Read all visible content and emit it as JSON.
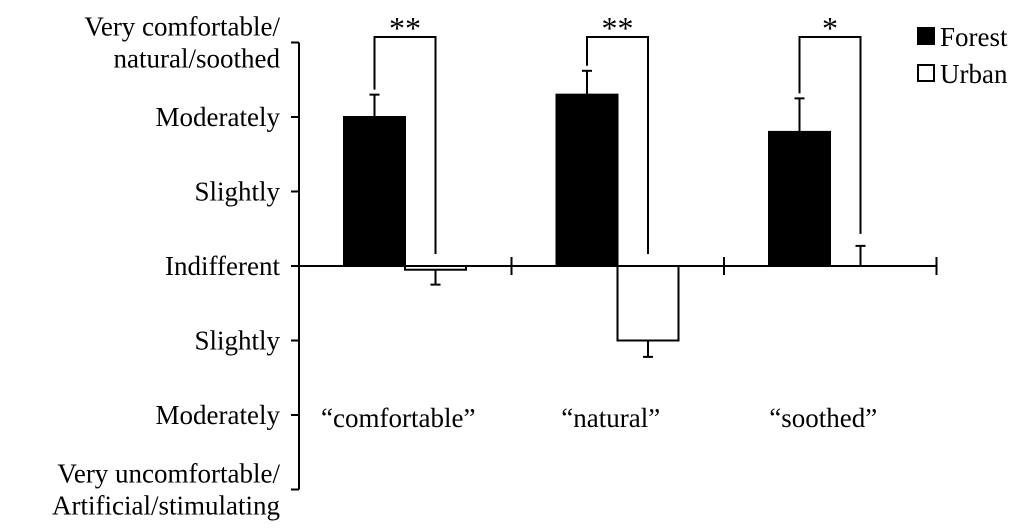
{
  "chart_data": {
    "type": "bar",
    "categories": [
      "“comfortable”",
      "“natural”",
      "“soothed”"
    ],
    "series": [
      {
        "name": "Forest",
        "values": [
          2.0,
          2.3,
          1.8
        ],
        "errors": [
          0.3,
          0.32,
          0.45
        ],
        "color": "#000000"
      },
      {
        "name": "Urban",
        "values": [
          -0.05,
          -1.0,
          0.0
        ],
        "errors": [
          0.2,
          0.22,
          0.27
        ],
        "color": "#ffffff"
      }
    ],
    "significance": [
      "**",
      "**",
      "*"
    ],
    "ylim": [
      -3,
      3
    ],
    "ytick_values": [
      3,
      2,
      1,
      0,
      -1,
      -2,
      -3
    ],
    "ytick_labels": [
      [
        "Very comfortable/",
        "natural/soothed"
      ],
      [
        "Moderately"
      ],
      [
        "Slightly"
      ],
      [
        "Indifferent"
      ],
      [
        "Slightly"
      ],
      [
        "Moderately"
      ],
      [
        "Very uncomfortable/",
        "Artificial/stimulating"
      ]
    ],
    "title": "",
    "xlabel": "",
    "ylabel": "",
    "legend_position": "top-right"
  }
}
